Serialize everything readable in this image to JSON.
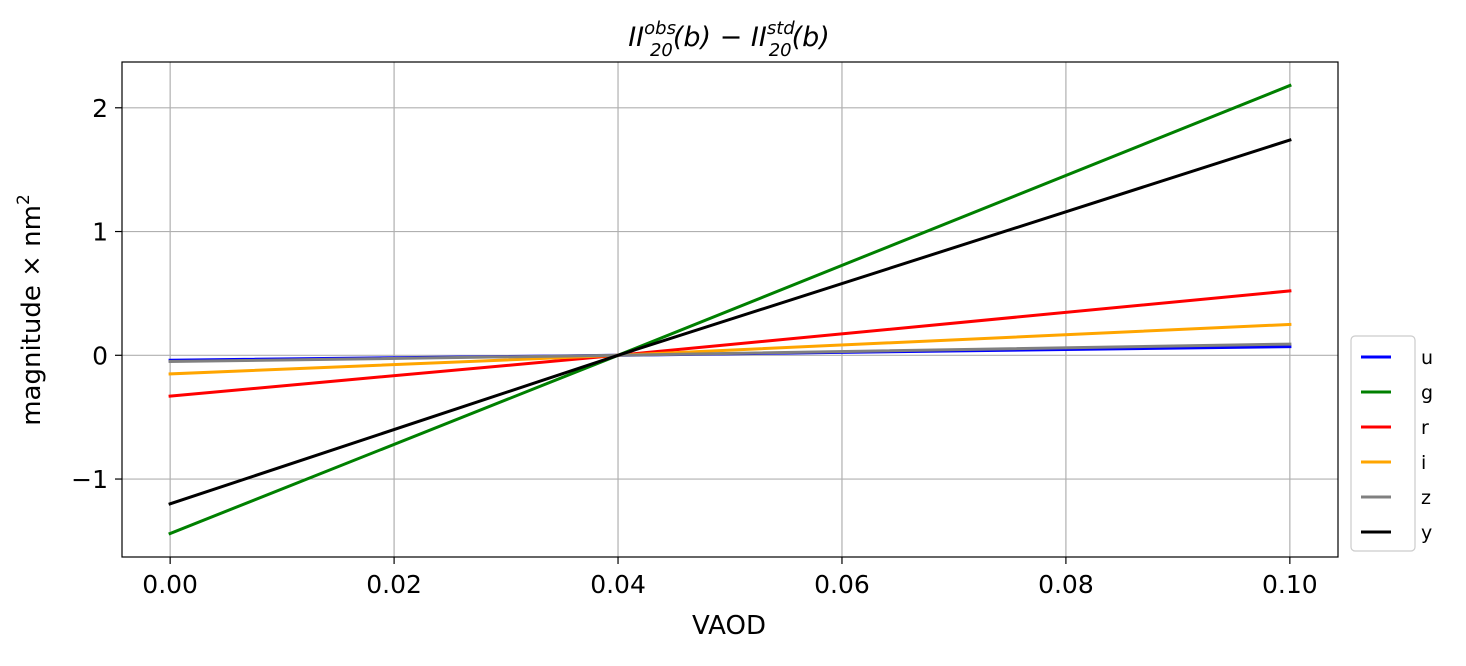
{
  "chart_data": {
    "type": "line",
    "title": {
      "left_base": "II",
      "left_sup": "obs",
      "left_sub": "20",
      "left_arg": "(b)",
      "minus": " − ",
      "right_base": "II",
      "right_sup": "std",
      "right_sub": "20",
      "right_arg": "(b)"
    },
    "xlabel": "VAOD",
    "ylabel": "magnitude × nm",
    "ylabel_sup": "2",
    "xlim": [
      -0.0043,
      0.1043
    ],
    "ylim": [
      -1.63,
      2.37
    ],
    "x_ticks": [
      0.0,
      0.02,
      0.04,
      0.06,
      0.08,
      0.1
    ],
    "x_tick_labels": [
      "0.00",
      "0.02",
      "0.04",
      "0.06",
      "0.08",
      "0.10"
    ],
    "y_ticks": [
      -1,
      0,
      1,
      2
    ],
    "y_tick_labels": [
      "−1",
      "0",
      "1",
      "2"
    ],
    "grid": true,
    "legend_position": "outside-right-bottom",
    "series": [
      {
        "name": "u",
        "color": "#0000ff",
        "x": [
          0.0,
          0.04,
          0.1
        ],
        "y": [
          -0.04,
          0.0,
          0.07
        ]
      },
      {
        "name": "g",
        "color": "#008000",
        "x": [
          0.0,
          0.04,
          0.1
        ],
        "y": [
          -1.44,
          0.0,
          2.18
        ]
      },
      {
        "name": "r",
        "color": "#ff0000",
        "x": [
          0.0,
          0.04,
          0.1
        ],
        "y": [
          -0.33,
          0.0,
          0.52
        ]
      },
      {
        "name": "i",
        "color": "#ffa500",
        "x": [
          0.0,
          0.04,
          0.1
        ],
        "y": [
          -0.15,
          0.0,
          0.25
        ]
      },
      {
        "name": "z",
        "color": "#808080",
        "x": [
          0.0,
          0.04,
          0.1
        ],
        "y": [
          -0.05,
          0.0,
          0.09
        ]
      },
      {
        "name": "y",
        "color": "#000000",
        "x": [
          0.0,
          0.04,
          0.1
        ],
        "y": [
          -1.2,
          0.0,
          1.74
        ]
      }
    ]
  }
}
